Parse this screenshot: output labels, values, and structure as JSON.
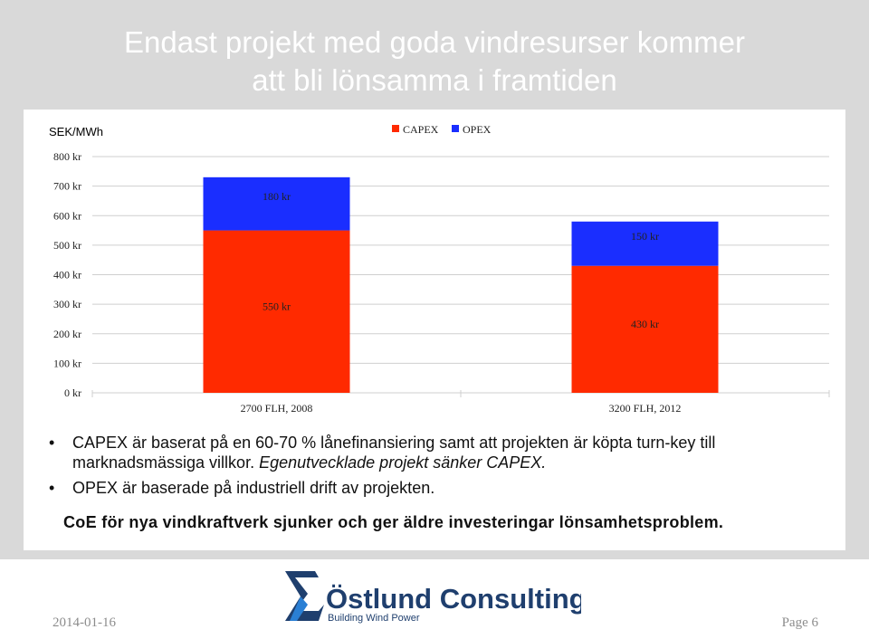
{
  "slide": {
    "title_line1": "Endast projekt med goda vindresurser kommer",
    "title_line2": "att bli lönsamma i framtiden",
    "bg_color": "#d9d9d9"
  },
  "chart_data": {
    "type": "bar",
    "stacked": true,
    "unit_label": "SEK/MWh",
    "categories": [
      "2700 FLH, 2008",
      "3200 FLH, 2012"
    ],
    "series": [
      {
        "name": "CAPEX",
        "values": [
          550,
          430
        ],
        "labels": [
          "550 kr",
          "430 kr"
        ],
        "color": "#ff2a00"
      },
      {
        "name": "OPEX",
        "values": [
          180,
          150
        ],
        "labels": [
          "180 kr",
          "150 kr"
        ],
        "color": "#1a2eff"
      }
    ],
    "y_ticks": [
      "0 kr",
      "100 kr",
      "200 kr",
      "300 kr",
      "400 kr",
      "500 kr",
      "600 kr",
      "700 kr",
      "800 kr"
    ],
    "ylim": [
      0,
      800
    ],
    "legend_position": "top-center"
  },
  "notes": {
    "bullet1": "CAPEX är baserat på en 60-70 % lånefinansiering samt att projekten är köpta turn-key till marknadsmässiga villkor.",
    "bullet1_emph": "Egenutvecklade projekt sänker CAPEX.",
    "bullet2": "OPEX är baserade på industriell drift av projekten.",
    "bullet_symbol": "•",
    "conclusion": "CoE för nya vindkraftverk sjunker och ger äldre investeringar lönsamhetsproblem."
  },
  "logo": {
    "name": "Östlund Consulting",
    "tagline": "Building Wind Power",
    "symbol": "Σ",
    "color": "#1f3f6e",
    "accent": "#2a7fd4"
  },
  "footer": {
    "date": "2014-01-16",
    "page": "Page  6"
  }
}
